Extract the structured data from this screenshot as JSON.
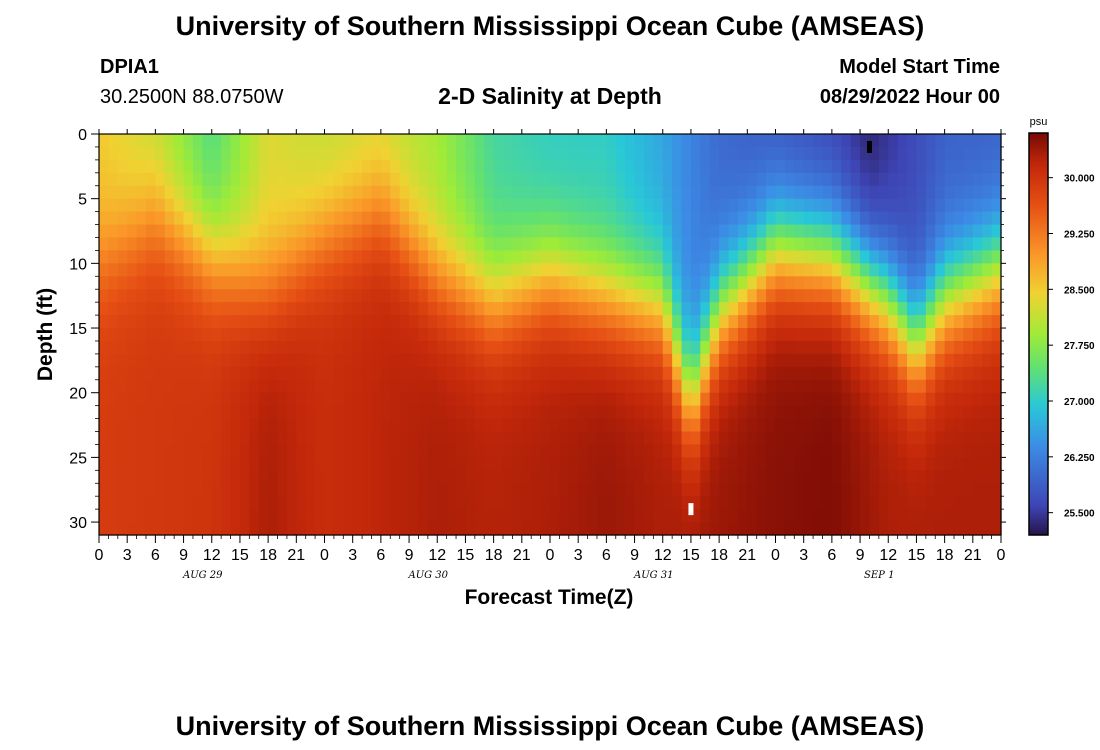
{
  "header": {
    "title": "University of Southern Mississippi Ocean Cube (AMSEAS)",
    "station_id": "DPIA1",
    "coordinates": "30.2500N  88.0750W",
    "subtitle": "2-D Salinity at Depth",
    "model_start_label": "Model Start Time",
    "model_start_value": "08/29/2022 Hour 00"
  },
  "footer": {
    "title": "University of Southern Mississippi Ocean Cube (AMSEAS)"
  },
  "chart_data": {
    "type": "heatmap",
    "title": "2-D Salinity at Depth",
    "xlabel": "Forecast Time(Z)",
    "ylabel": "Depth (ft)",
    "x_range_hours": [
      0,
      96
    ],
    "y_range_ft": [
      0,
      31
    ],
    "x_tick_labels": [
      "0",
      "3",
      "6",
      "9",
      "12",
      "15",
      "18",
      "21",
      "0",
      "3",
      "6",
      "9",
      "12",
      "15",
      "18",
      "21",
      "0",
      "3",
      "6",
      "9",
      "12",
      "15",
      "18",
      "21",
      "0",
      "3",
      "6",
      "9",
      "12",
      "15",
      "18",
      "21",
      "0"
    ],
    "day_labels": [
      "AUG 29",
      "AUG 30",
      "AUG 31",
      "SEP 1"
    ],
    "y_ticks": [
      0,
      5,
      10,
      15,
      20,
      25,
      30
    ],
    "colorbar": {
      "unit": "psu",
      "ticks": [
        "30.000",
        "29.250",
        "28.500",
        "27.750",
        "27.000",
        "26.250",
        "25.500"
      ],
      "range": [
        25.2,
        30.6
      ]
    },
    "surface_salinity_psu": [
      [
        0,
        28.5
      ],
      [
        6,
        28.1
      ],
      [
        12,
        27.3
      ],
      [
        18,
        28.3
      ],
      [
        24,
        28.1
      ],
      [
        30,
        28.2
      ],
      [
        36,
        27.9
      ],
      [
        42,
        27.2
      ],
      [
        48,
        27.0
      ],
      [
        54,
        27.0
      ],
      [
        60,
        26.6
      ],
      [
        66,
        26.0
      ],
      [
        72,
        25.8
      ],
      [
        78,
        25.6
      ],
      [
        82,
        25.3
      ],
      [
        86,
        25.6
      ],
      [
        90,
        25.9
      ],
      [
        96,
        25.9
      ]
    ],
    "fresh_layer_depth_ft": [
      [
        0,
        10
      ],
      [
        6,
        6.5
      ],
      [
        12,
        9.5
      ],
      [
        18,
        12
      ],
      [
        24,
        8
      ],
      [
        30,
        6
      ],
      [
        36,
        11
      ],
      [
        42,
        13
      ],
      [
        48,
        11
      ],
      [
        54,
        12.5
      ],
      [
        60,
        13.5
      ],
      [
        63,
        21
      ],
      [
        66,
        14
      ],
      [
        72,
        9
      ],
      [
        78,
        9.5
      ],
      [
        84,
        13
      ],
      [
        87,
        16.5
      ],
      [
        90,
        13
      ],
      [
        96,
        10.5
      ]
    ],
    "bottom_salinity_psu": [
      [
        0,
        29.9
      ],
      [
        12,
        30.0
      ],
      [
        18,
        30.3
      ],
      [
        24,
        30.1
      ],
      [
        30,
        30.2
      ],
      [
        36,
        30.3
      ],
      [
        42,
        30.25
      ],
      [
        48,
        30.3
      ],
      [
        54,
        30.4
      ],
      [
        60,
        30.3
      ],
      [
        66,
        30.4
      ],
      [
        72,
        30.5
      ],
      [
        78,
        30.55
      ],
      [
        84,
        30.3
      ],
      [
        90,
        30.3
      ],
      [
        96,
        30.3
      ]
    ],
    "annotations": [
      {
        "label": "marker",
        "time_h": 82,
        "depth_ft": 1.0,
        "color": "#000000"
      },
      {
        "label": "marker",
        "time_h": 63,
        "depth_ft": 29.0,
        "color": "#ffffff"
      }
    ]
  }
}
